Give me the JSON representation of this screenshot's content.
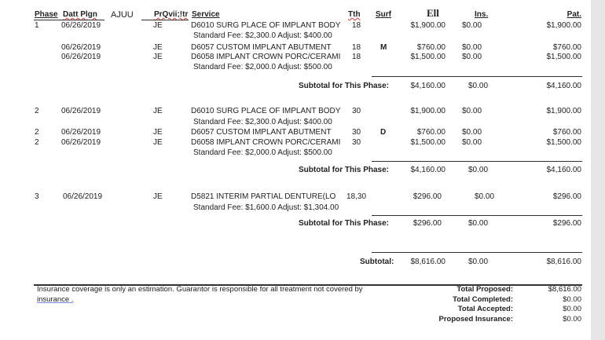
{
  "header": {
    "phase": "Phase",
    "date": "Datt Plgn",
    "extra": "AJUU",
    "provider": "PrQvii;!tr",
    "service": "Service",
    "tooth": "Tth",
    "surface": "Surf",
    "fee": "Ell",
    "insurance": "Ins.",
    "patient": "Pat."
  },
  "phases": [
    {
      "rows": [
        {
          "phase": "1",
          "date": "06/26/2019",
          "provider": "JE",
          "service": "D6010 SURG PLACE OF IMPLANT BODY",
          "tooth": "18",
          "surface": "",
          "fee": "$1,900.00",
          "ins": "$0.00",
          "pat": "$1,900.00",
          "note": "Standard Fee: $2,300.0 Adjust: $400.00"
        },
        {
          "phase": "",
          "date": "06/26/2019",
          "provider": "JE",
          "service": "D6057 CUSTOM IMPLANT ABUTMENT",
          "tooth": "18",
          "surface": "M",
          "fee": "$760.00",
          "ins": "$0.00",
          "pat": "$760.00",
          "note": ""
        },
        {
          "phase": "",
          "date": "06/26/2019",
          "provider": "JE",
          "service": "D6058 IMPLANT CROWN PORC/CERAMI",
          "tooth": "18",
          "surface": "",
          "fee": "$1,500.00",
          "ins": "$0.00",
          "pat": "$1,500.00",
          "note": "Standard Fee: $2,000.0 Adjust: $500.00"
        }
      ],
      "subtotal_label": "Subtotal for This Phase:",
      "subtotal": {
        "fee": "$4,160.00",
        "ins": "$0.00",
        "pat": "$4,160.00"
      }
    },
    {
      "rows": [
        {
          "phase": "2",
          "date": "06/26/2019",
          "provider": "JE",
          "service": "D6010 SURG PLACE OF IMPLANT BODY",
          "tooth": "30",
          "surface": "",
          "fee": "$1,900.00",
          "ins": "$0.00",
          "pat": "$1,900.00",
          "note": "Standard Fee: $2,300.0 Adjust: $400.00"
        },
        {
          "phase": "2",
          "date": "06/26/2019",
          "provider": "JE",
          "service": "D6057 CUSTOM IMPLANT ABUTMENT",
          "tooth": "30",
          "surface": "D",
          "fee": "$760.00",
          "ins": "$0.00",
          "pat": "$760.00",
          "note": ""
        },
        {
          "phase": "2",
          "date": "06/26/2019",
          "provider": "JE",
          "service": "D6058 IMPLANT CROWN PORC/CERAMI",
          "tooth": "30",
          "surface": "",
          "fee": "$1,500.00",
          "ins": "$0.00",
          "pat": "$1,500.00",
          "note": "Standard Fee: $2,000.0 Adjust: $500.00"
        }
      ],
      "subtotal_label": "Subtotal for This Phase:",
      "subtotal": {
        "fee": "$4,160.00",
        "ins": "$0.00",
        "pat": "$4,160.00"
      }
    },
    {
      "rows": [
        {
          "phase": "3",
          "date": "06/26/2019",
          "provider": "JE",
          "service": "D5821  INTERIM PARTIAL DENTURE(LO",
          "tooth": "18,30",
          "surface": "",
          "fee": "$296.00",
          "ins": "$0.00",
          "pat": "$296.00",
          "note": "Standard Fee: $1,600.0 Adjust: $1,304.00"
        }
      ],
      "subtotal_label": "Subtotal for This Phase:",
      "subtotal": {
        "fee": "$296.00",
        "ins": "$0.00",
        "pat": "$296.00"
      }
    }
  ],
  "grand": {
    "label": "Subtotal:",
    "fee": "$8,616.00",
    "ins": "$0.00",
    "pat": "$8,616.00"
  },
  "footer": {
    "disclaimer_line1": "Insurance coverage is only an estimation. Guarantor is responsible for all treatment not covered by",
    "disclaimer_line2": "insurance .",
    "totals": [
      {
        "label": "Total Proposed:",
        "value": "$8,616.00"
      },
      {
        "label": "Total Completed:",
        "value": "$0.00"
      },
      {
        "label": "Total Accepted:",
        "value": "$0.00"
      },
      {
        "label": "Proposed Insurance:",
        "value": "$0.00"
      }
    ]
  }
}
